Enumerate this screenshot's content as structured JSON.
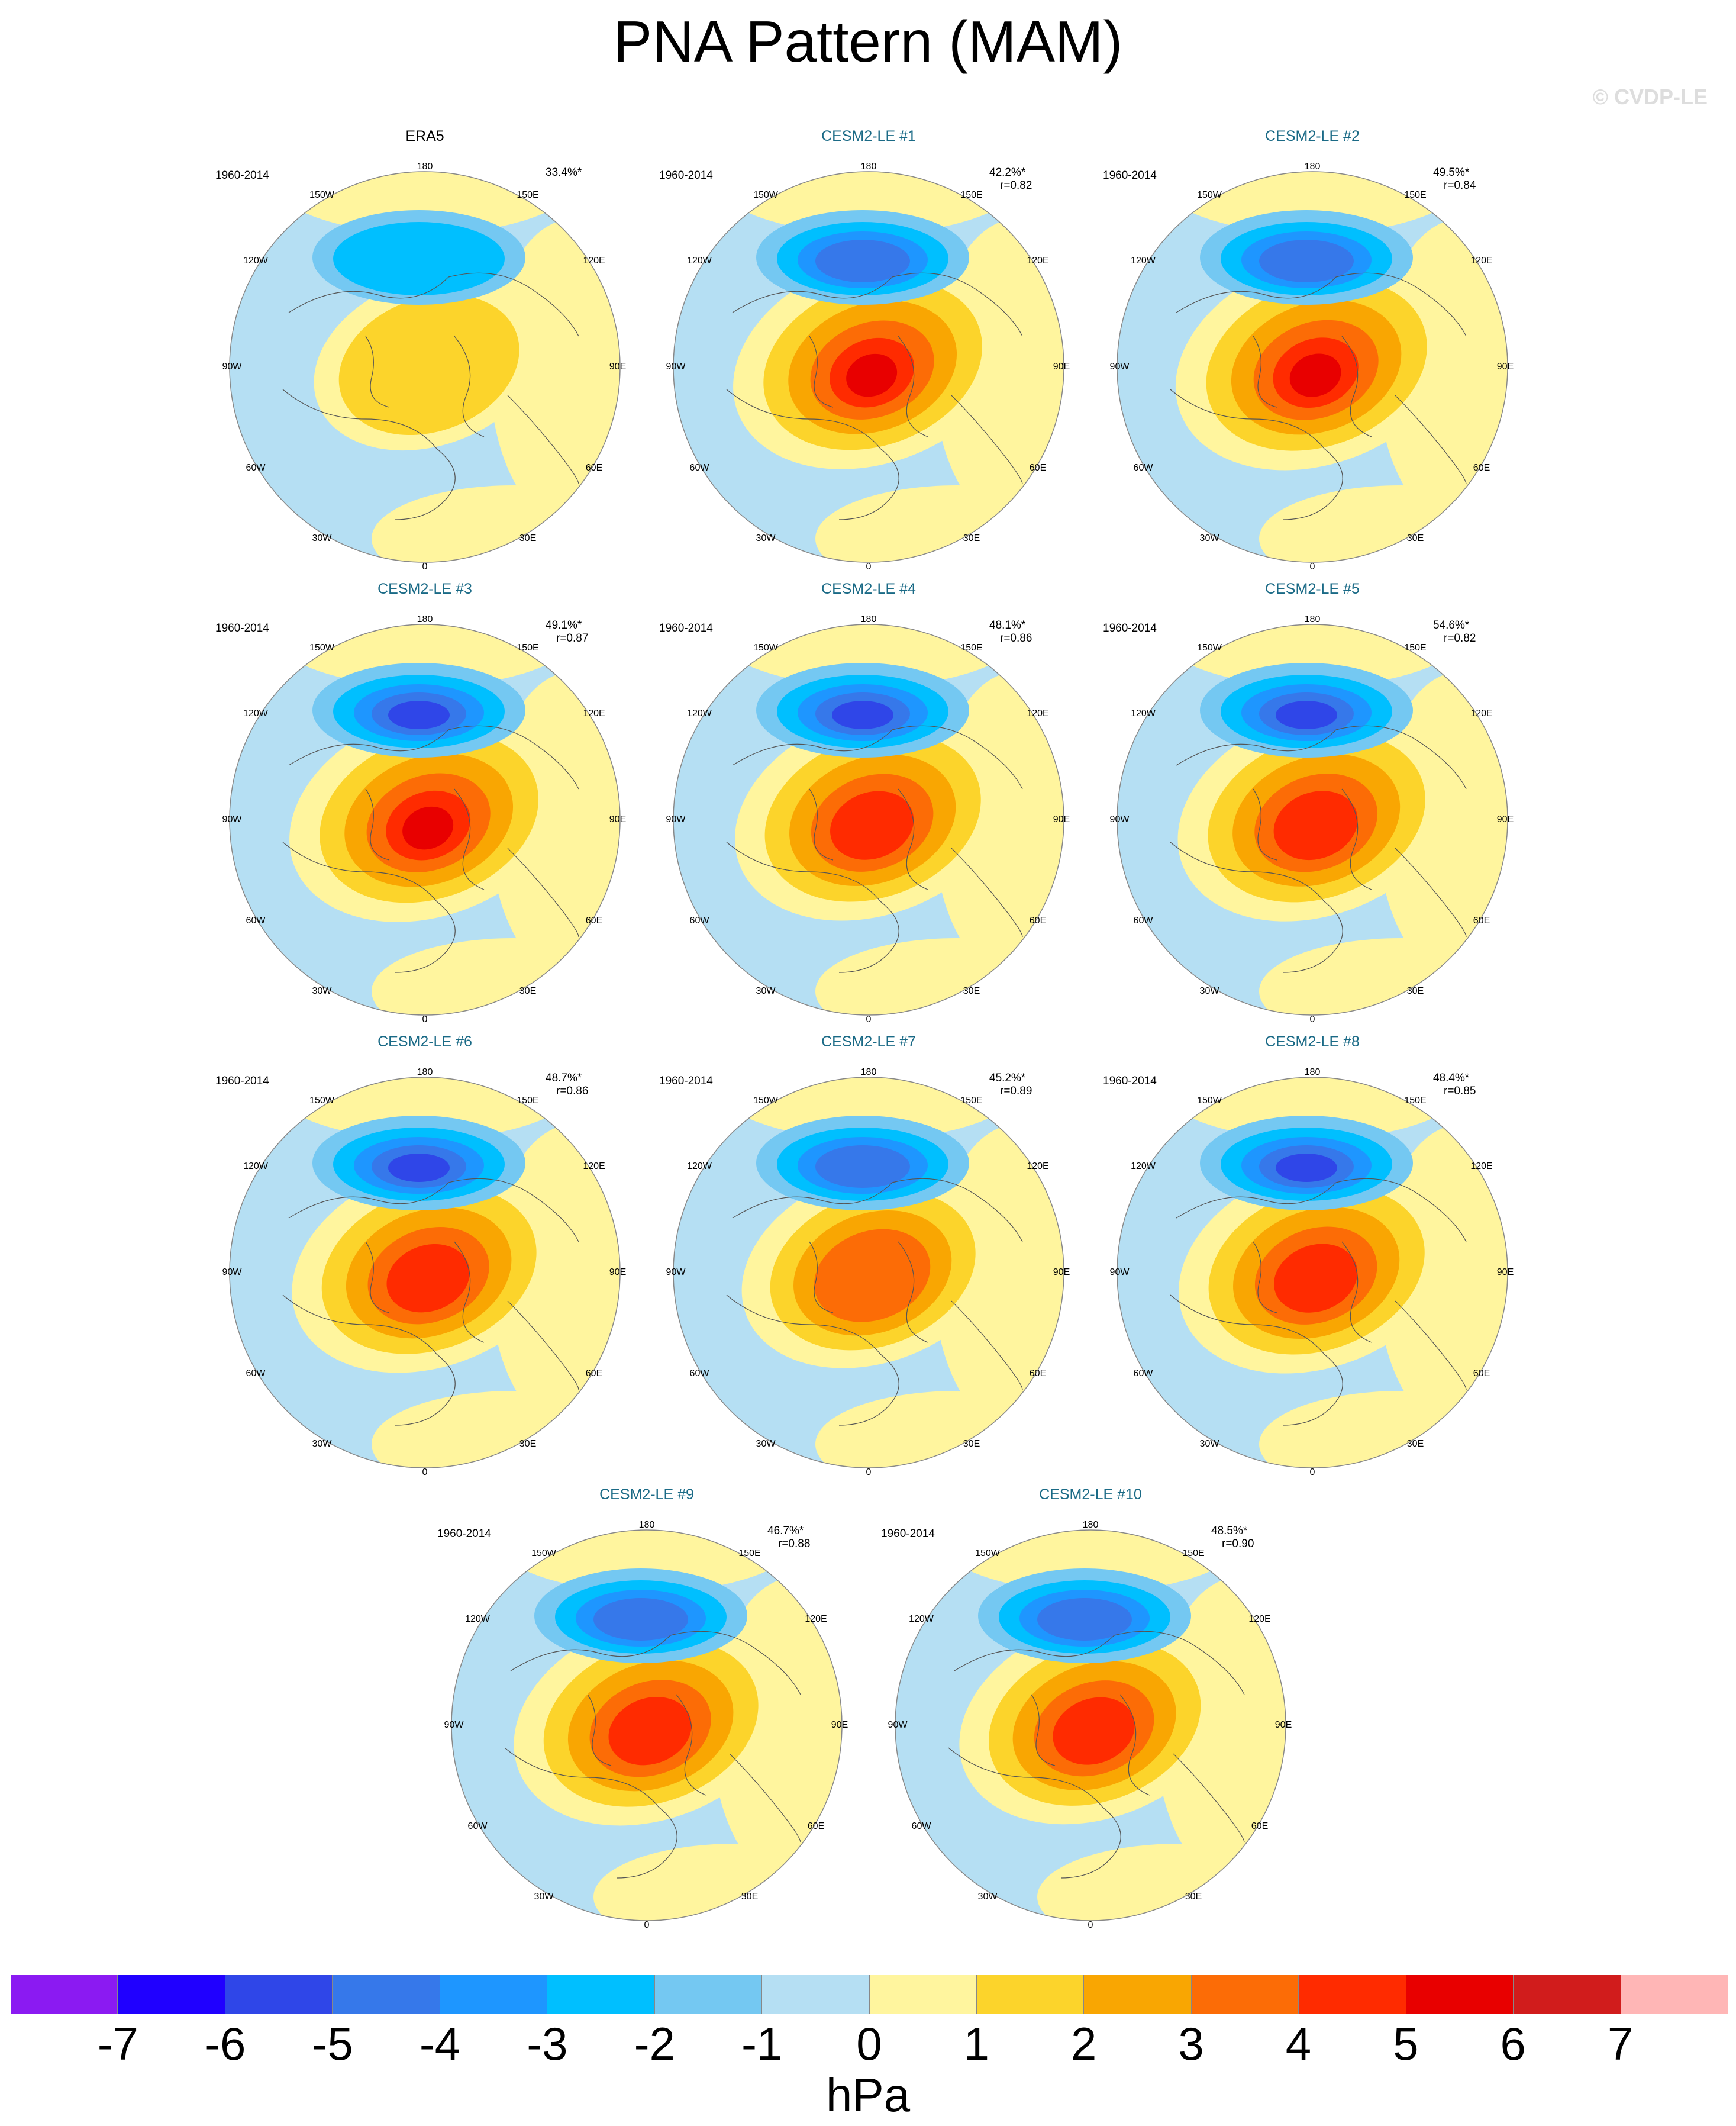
{
  "title": "PNA Pattern (MAM)",
  "watermark": "© CVDP-LE",
  "units": "hPa",
  "lon_labels": {
    "n180": "180",
    "w150": "150W",
    "e150": "150E",
    "w120": "120W",
    "e120": "120E",
    "w90": "90W",
    "e90": "90E",
    "w60": "60W",
    "e60": "60E",
    "w30": "30W",
    "e30": "30E",
    "s0": "0"
  },
  "colorbar": {
    "colors": [
      "#8b1af2",
      "#2000ff",
      "#2f46e8",
      "#3678ea",
      "#1e96ff",
      "#00bfff",
      "#74c8f2",
      "#b5dff3",
      "#fff59e",
      "#fcd42b",
      "#f9a602",
      "#fc6c06",
      "#ff2b00",
      "#e80000",
      "#d11c1c",
      "#ffb6b6"
    ],
    "labels": [
      "-7",
      "-6",
      "-5",
      "-4",
      "-3",
      "-2",
      "-1",
      "0",
      "1",
      "2",
      "3",
      "4",
      "5",
      "6",
      "7"
    ]
  },
  "panels": [
    {
      "title": "ERA5",
      "period": "1960-2014",
      "pct": "33.4%*",
      "r": "",
      "obs": true,
      "strength": 0.42,
      "posAmp": 0.35
    },
    {
      "title": "CESM2-LE #1",
      "period": "1960-2014",
      "pct": "42.2%*",
      "r": "r=0.82",
      "obs": false,
      "strength": 0.82,
      "posAmp": 0.92
    },
    {
      "title": "CESM2-LE #2",
      "period": "1960-2014",
      "pct": "49.5%*",
      "r": "r=0.84",
      "obs": false,
      "strength": 0.8,
      "posAmp": 0.95
    },
    {
      "title": "CESM2-LE #3",
      "period": "1960-2014",
      "pct": "49.1%*",
      "r": "r=0.87",
      "obs": false,
      "strength": 0.95,
      "posAmp": 0.92
    },
    {
      "title": "CESM2-LE #4",
      "period": "1960-2014",
      "pct": "48.1%*",
      "r": "r=0.86",
      "obs": false,
      "strength": 0.92,
      "posAmp": 0.88
    },
    {
      "title": "CESM2-LE #5",
      "period": "1960-2014",
      "pct": "54.6%*",
      "r": "r=0.82",
      "obs": false,
      "strength": 0.92,
      "posAmp": 0.9
    },
    {
      "title": "CESM2-LE #6",
      "period": "1960-2014",
      "pct": "48.7%*",
      "r": "r=0.86",
      "obs": false,
      "strength": 0.9,
      "posAmp": 0.86
    },
    {
      "title": "CESM2-LE #7",
      "period": "1960-2014",
      "pct": "45.2%*",
      "r": "r=0.89",
      "obs": false,
      "strength": 0.88,
      "posAmp": 0.72
    },
    {
      "title": "CESM2-LE #8",
      "period": "1960-2014",
      "pct": "48.4%*",
      "r": "r=0.85",
      "obs": false,
      "strength": 0.9,
      "posAmp": 0.88
    },
    {
      "title": "CESM2-LE #9",
      "period": "1960-2014",
      "pct": "46.7%*",
      "r": "r=0.88",
      "obs": false,
      "strength": 0.88,
      "posAmp": 0.86
    },
    {
      "title": "CESM2-LE #10",
      "period": "1960-2014",
      "pct": "48.5%*",
      "r": "r=0.90",
      "obs": false,
      "strength": 0.86,
      "posAmp": 0.82
    }
  ]
}
